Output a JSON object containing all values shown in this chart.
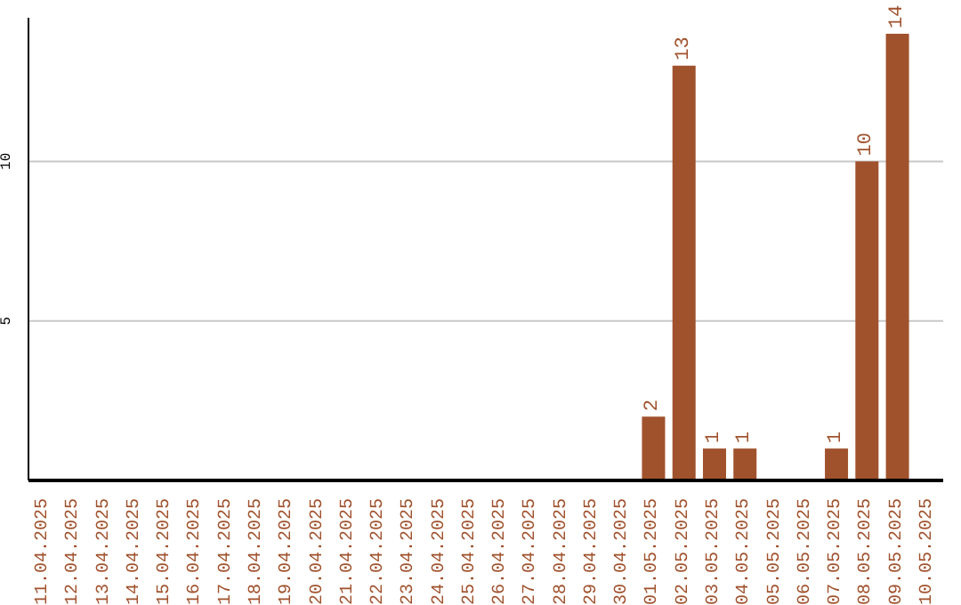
{
  "chart_data": {
    "type": "bar",
    "categories": [
      "11.04.2025",
      "12.04.2025",
      "13.04.2025",
      "14.04.2025",
      "15.04.2025",
      "16.04.2025",
      "17.04.2025",
      "18.04.2025",
      "19.04.2025",
      "20.04.2025",
      "21.04.2025",
      "22.04.2025",
      "23.04.2025",
      "24.04.2025",
      "25.04.2025",
      "26.04.2025",
      "27.04.2025",
      "28.04.2025",
      "29.04.2025",
      "30.04.2025",
      "01.05.2025",
      "02.05.2025",
      "03.05.2025",
      "04.05.2025",
      "05.05.2025",
      "06.05.2025",
      "07.05.2025",
      "08.05.2025",
      "09.05.2025",
      "10.05.2025"
    ],
    "values": [
      0,
      0,
      0,
      0,
      0,
      0,
      0,
      0,
      0,
      0,
      0,
      0,
      0,
      0,
      0,
      0,
      0,
      0,
      0,
      0,
      2,
      13,
      1,
      1,
      0,
      0,
      1,
      10,
      14,
      0
    ],
    "value_labels": [
      null,
      null,
      null,
      null,
      null,
      null,
      null,
      null,
      null,
      null,
      null,
      null,
      null,
      null,
      null,
      null,
      null,
      null,
      null,
      null,
      "2",
      "13",
      "1",
      "1",
      null,
      null,
      "1",
      "10",
      "14",
      null
    ],
    "color": "#a0522d",
    "ylim": [
      0,
      14.5
    ],
    "yticks": [
      5,
      10
    ],
    "grid": "y"
  }
}
